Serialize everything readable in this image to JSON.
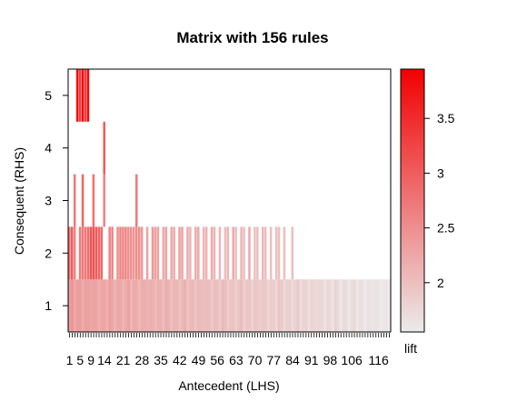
{
  "chart_data": {
    "type": "heatmap",
    "title": "Matrix with 156 rules",
    "xlabel": "Antecedent (LHS)",
    "ylabel": "Consequent (RHS)",
    "x_ticks": [
      1,
      5,
      9,
      14,
      21,
      28,
      35,
      42,
      49,
      56,
      63,
      70,
      77,
      84,
      91,
      98,
      106,
      116
    ],
    "y_ticks": [
      1,
      2,
      3,
      4,
      5
    ],
    "xlim": [
      0.5,
      120.5
    ],
    "ylim": [
      0.5,
      5.5
    ],
    "colorbar": {
      "label": "lift",
      "ticks": [
        2,
        2.5,
        3,
        3.5
      ],
      "range": [
        1.55,
        3.95
      ],
      "low_color": "#ebebeb",
      "high_color": "#f20000"
    },
    "rows": [
      {
        "rhs": 5,
        "columns": [
          4,
          5,
          6,
          7,
          8
        ],
        "lift": [
          3.85,
          3.3,
          3.85,
          3.3,
          3.85
        ]
      },
      {
        "rhs": 4,
        "columns": [
          14
        ],
        "lift": [
          3.0
        ]
      },
      {
        "rhs": 3,
        "columns": [
          3,
          6,
          10,
          14,
          26
        ],
        "lift": [
          2.7,
          2.9,
          2.8,
          2.6,
          2.7
        ]
      },
      {
        "rhs": 2,
        "columns": [
          1,
          2,
          3,
          5,
          6,
          7,
          8,
          9,
          10,
          11,
          12,
          13,
          16,
          17,
          19,
          20,
          21,
          22,
          23,
          24,
          25,
          26,
          27,
          28,
          30,
          32,
          33,
          34,
          36,
          37,
          39,
          40,
          42,
          43,
          45,
          46,
          48,
          49,
          51,
          52,
          54,
          55,
          57,
          59,
          60,
          62,
          63,
          65,
          66,
          68,
          70,
          71,
          73,
          74,
          76,
          78,
          79,
          81,
          84
        ],
        "lift": [
          2.8,
          3.0,
          2.6,
          2.7,
          2.7,
          2.7,
          2.8,
          3.1,
          3.1,
          3.0,
          2.9,
          2.9,
          2.6,
          2.6,
          2.5,
          2.6,
          2.6,
          2.6,
          2.5,
          2.5,
          2.4,
          2.5,
          2.5,
          2.4,
          2.3,
          2.4,
          2.3,
          2.3,
          2.2,
          2.3,
          2.2,
          2.2,
          2.3,
          2.3,
          2.2,
          2.1,
          2.2,
          2.2,
          2.1,
          2.1,
          2.2,
          2.1,
          2.1,
          2.0,
          2.1,
          2.2,
          2.0,
          2.1,
          2.0,
          2.2,
          2.0,
          2.0,
          2.1,
          2.0,
          2.0,
          2.0,
          2.0,
          2.0,
          2.0
        ]
      }
    ]
  }
}
